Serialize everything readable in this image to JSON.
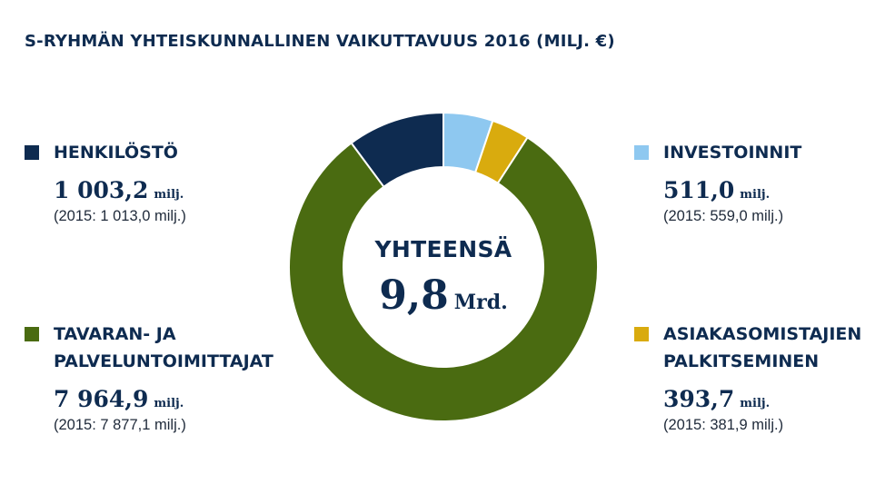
{
  "title": "S-RYHMÄN YHTEISKUNNALLINEN VAIKUTTAVUUS 2016 (MILJ. €)",
  "center": {
    "label": "YHTEENSÄ",
    "value": "9,8",
    "unit": "Mrd."
  },
  "legend": {
    "henkilosto": {
      "label_lines": [
        "HENKILÖSTÖ"
      ],
      "value": "1 003,2",
      "unit": "milj.",
      "prev": "(2015: 1 013,0 milj.)",
      "color": "#0e2b50"
    },
    "tavarat": {
      "label_lines": [
        "TAVARAN- JA",
        "PALVELUNTOIMITTAJAT"
      ],
      "value": "7 964,9",
      "unit": "milj.",
      "prev": "(2015: 7 877,1 milj.)",
      "color": "#4a6b11"
    },
    "investoinnit": {
      "label_lines": [
        "INVESTOINNIT"
      ],
      "value": "511,0",
      "unit": "milj.",
      "prev": "(2015: 559,0 milj.)",
      "color": "#8ec8f0"
    },
    "asiakasomistajat": {
      "label_lines": [
        "ASIAKASOMISTAJIEN",
        "PALKITSEMINEN"
      ],
      "value": "393,7",
      "unit": "milj.",
      "prev": "(2015: 381,9 milj.)",
      "color": "#d9ab0e"
    }
  },
  "chart_data": {
    "type": "pie",
    "title": "S-RYHMÄN YHTEISKUNNALLINEN VAIKUTTAVUUS 2016 (MILJ. €)",
    "unit": "milj. €",
    "total_label": "YHTEENSÄ 9,8 Mrd.",
    "slices": [
      {
        "name": "INVESTOINNIT",
        "value": 511.0,
        "prev_2015": 559.0,
        "color": "#8ec8f0"
      },
      {
        "name": "ASIAKASOMISTAJIEN PALKITSEMINEN",
        "value": 393.7,
        "prev_2015": 381.9,
        "color": "#d9ab0e"
      },
      {
        "name": "TAVARAN- JA PALVELUNTOIMITTAJAT",
        "value": 7964.9,
        "prev_2015": 7877.1,
        "color": "#4a6b11"
      },
      {
        "name": "HENKILÖSTÖ",
        "value": 1003.2,
        "prev_2015": 1013.0,
        "color": "#0e2b50"
      }
    ]
  }
}
